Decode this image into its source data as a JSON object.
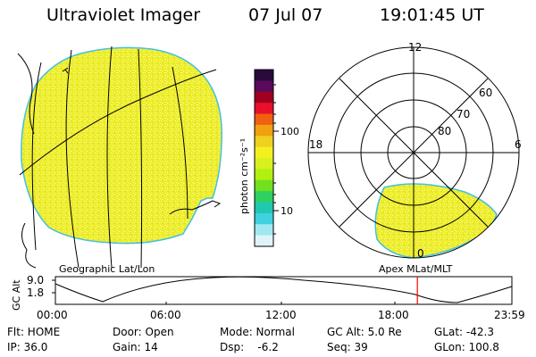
{
  "header": {
    "instrument": "Ultraviolet Imager",
    "date": "07 Jul 07",
    "time": "19:01:45 UT"
  },
  "geo_panel": {
    "label": "Geographic Lat/Lon"
  },
  "apex_panel": {
    "label": "Apex MLat/MLT",
    "mlt_labels": [
      "12",
      "18",
      "6",
      "0"
    ],
    "mlat_labels": [
      "60",
      "70",
      "80"
    ]
  },
  "colorbar": {
    "unit_label": "photon cm⁻²s⁻¹",
    "tick_labels": [
      "100",
      "10"
    ],
    "colors": [
      "#2a0a3c",
      "#5a0a5a",
      "#a00020",
      "#e8102a",
      "#f06010",
      "#f0a010",
      "#f0d020",
      "#f4f020",
      "#d8f020",
      "#b0f010",
      "#70e020",
      "#30d060",
      "#20c8b0",
      "#40d0e0",
      "#a0e8f0",
      "#e0f4f8"
    ]
  },
  "altitude_strip": {
    "ylabel": "GC Alt",
    "y_ticks": [
      "9.0",
      "1.8"
    ],
    "x_ticks": [
      "00:00",
      "06:00",
      "12:00",
      "18:00",
      "23:59"
    ],
    "current_time_marker_hours": 19.03,
    "marker_color": "#ff0000"
  },
  "status": {
    "row1": [
      {
        "label": "Flt: HOME"
      },
      {
        "label": "Door: Open"
      },
      {
        "label": "Mode: Normal"
      },
      {
        "label": "GC Alt: 5.0 Re"
      },
      {
        "label": "GLat: -42.3"
      }
    ],
    "row2": [
      {
        "label": "IP: 36.0"
      },
      {
        "label": "Gain: 14"
      },
      {
        "label": "Dsp:    -6.2"
      },
      {
        "label": "Seq: 39"
      },
      {
        "label": "GLon: 100.8"
      }
    ]
  },
  "colors": {
    "image_fill": "#f2f22a",
    "image_edge": "#44c0e0"
  }
}
